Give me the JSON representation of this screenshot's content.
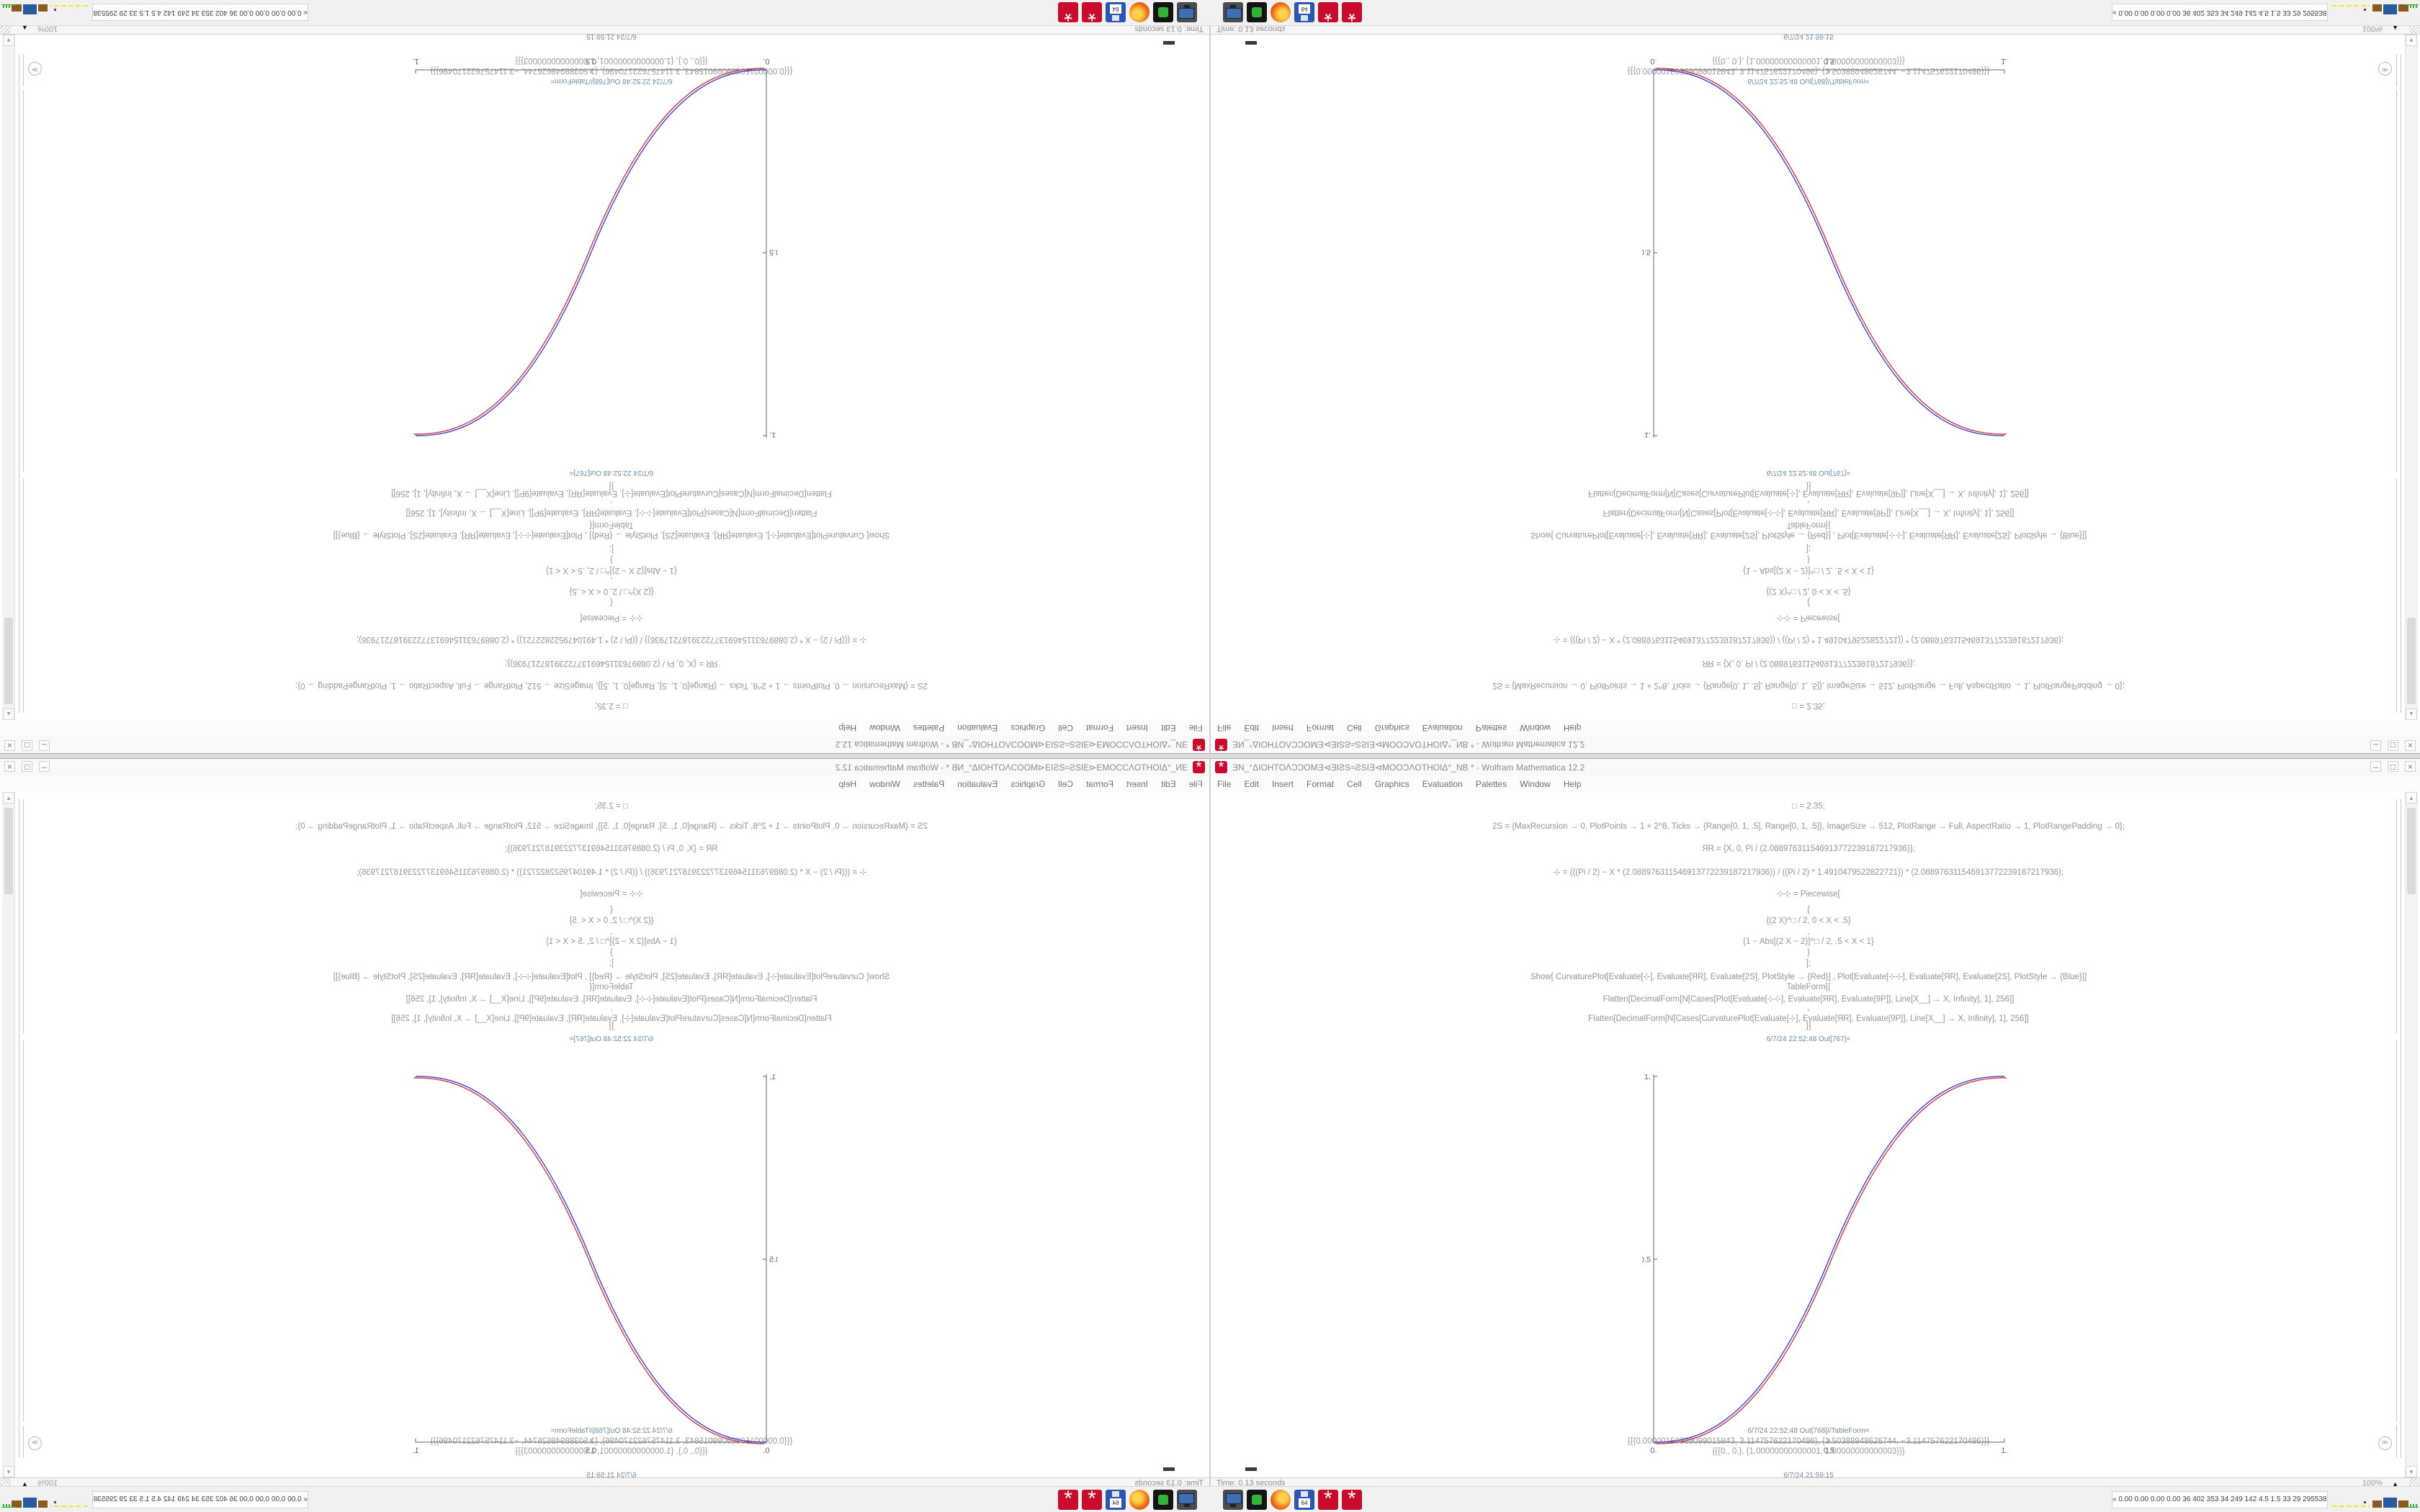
{
  "window": {
    "title": "ƎN_°ΔIOHTOΛƆƆOMƎ⊲ƎIƧS≈ƧSIƎ⊲MOOƆΛOTHOIΔ°_NB * - Wolfram Mathematica 12.2",
    "controls": {
      "minimize": "–",
      "maximize": "□",
      "close": "×"
    },
    "app_icon": "*"
  },
  "menu": {
    "items": [
      {
        "text": "File"
      },
      {
        "text": "Edit"
      },
      {
        "text": "Insert"
      },
      {
        "text": "Format"
      },
      {
        "text": "Cell"
      },
      {
        "text": "Graphics"
      },
      {
        "text": "Evaluation"
      },
      {
        "text": "Palettes"
      },
      {
        "text": "Window"
      },
      {
        "text": "Help"
      }
    ]
  },
  "notebook": {
    "lines": [
      {
        "y": 14,
        "kind": "in",
        "text": "□ = 2.35;"
      },
      {
        "y": 42,
        "kind": "in",
        "text": "2S = {MaxRecursion → 0, PlotPoints → 1 + 2^8, Ticks → {Range[0, 1, .5], Range[0, 1, .5]}, ImageSize → 512, PlotRange → Full, AspectRatio → 1, PlotRangePadding → 0};"
      },
      {
        "y": 73,
        "kind": "in",
        "text": "ЯR = {X, 0, Pi / (2.088976311546913772239187217936)};"
      },
      {
        "y": 104,
        "kind": "in",
        "text": "⊹ = (((Pi / 2) − X * (2.088976311546913772239187217936)) / ((Pi / 2) * 1.4910479522822721)) * (2.088976311546913772239187217936);"
      },
      {
        "y": 134,
        "kind": "in",
        "text": "⊹⊹ = Piecewise["
      },
      {
        "y": 158,
        "kind": "in",
        "text": "{"
      },
      {
        "y": 173,
        "kind": "in",
        "text": "{(2 X)^□ / 2, 0 < X < .5}"
      },
      {
        "y": 188,
        "kind": "in",
        "text": ","
      },
      {
        "y": 202,
        "kind": "in",
        "text": "{1 − Abs[(2 X − 2)]^□ / 2, .5 < X < 1}"
      },
      {
        "y": 217,
        "kind": "in",
        "text": "}"
      },
      {
        "y": 232,
        "kind": "in",
        "text": "];"
      },
      {
        "y": 249,
        "kind": "in",
        "text": "Show[  CurvaturePlot[Evaluate[⊹], Evaluate[ЯR], Evaluate[2S], PlotStyle → {Red}]  ,  Plot[Evaluate[⊹⊹], Evaluate[ЯR], Evaluate[2S], PlotStyle → {Blue}]]"
      },
      {
        "y": 265,
        "kind": "in",
        "text": "TableForm[{"
      },
      {
        "y": 280,
        "kind": "in",
        "text": "Flatten[DecimalForm[N[Cases[Plot[Evaluate[⊹⊹], Evaluate[ЯR], Evaluate[9P]], Line[X__] → X, Infinity], 1], 256]]"
      },
      {
        "y": 294,
        "kind": "in",
        "text": ","
      },
      {
        "y": 307,
        "kind": "in",
        "text": "Flatten[DecimalForm[N[Cases[CurvaturePlot[Evaluate[⊹], Evaluate[ЯR], Evaluate[9P]], Line[X__] → X, Infinity], 1], 256]]"
      },
      {
        "y": 319,
        "kind": "in",
        "text": "}]"
      },
      {
        "y": 338,
        "kind": "label",
        "text": "6/7/24 22:52:48 Out[767]="
      },
      {
        "y": 882,
        "kind": "label",
        "text": "6/7/24 22:52:48 Out[768]//TableForm="
      },
      {
        "y": 896,
        "kind": "out",
        "text": "{{{0.00000150389099015843, 3.114757622170496}, {1.50388948626744, −3.114757622170496}}}"
      },
      {
        "y": 910,
        "kind": "out",
        "text": "{{{0., 0.}, {1.00000000000001, 1.00000000000003}}}"
      },
      {
        "y": 944,
        "kind": "label",
        "text": "6/7/24 21:59:15"
      }
    ],
    "scroll_up": "▲",
    "scroll_down": "▼",
    "group_opener": "≫"
  },
  "chart_data": {
    "type": "line",
    "title": "",
    "xlabel": "",
    "ylabel": "",
    "x_range": [
      0,
      1
    ],
    "y_range": [
      0,
      1
    ],
    "xticks": [
      "0.",
      "0.5",
      "1."
    ],
    "xtick_values": [
      0,
      0.5,
      1
    ],
    "yticks": [
      "0.5",
      "1."
    ],
    "ytick_values": [
      0.5,
      1
    ],
    "grid": false,
    "legend": "none",
    "function": "piecewise: y = (2x)^2.35/2 for 0<x<.5 ; y = 1 - Abs[2x-2]^2.35/2 for .5<x<1",
    "exponent": 2.35,
    "series": [
      {
        "name": "CurvaturePlot-red",
        "color": "#cc3a4a",
        "dx": 2.5,
        "dy": 2,
        "x": [
          0,
          0.1,
          0.2,
          0.3,
          0.4,
          0.5,
          0.6,
          0.7,
          0.8,
          0.9,
          1
        ],
        "values": [
          0,
          0.011,
          0.058,
          0.15,
          0.296,
          0.5,
          0.704,
          0.85,
          0.942,
          0.989,
          1
        ]
      },
      {
        "name": "Plot-blue",
        "color": "#4343cf",
        "dx": 0,
        "dy": 0,
        "x": [
          0,
          0.1,
          0.2,
          0.3,
          0.4,
          0.5,
          0.6,
          0.7,
          0.8,
          0.9,
          1
        ],
        "values": [
          0,
          0.011,
          0.058,
          0.15,
          0.296,
          0.5,
          0.704,
          0.85,
          0.942,
          0.989,
          1
        ]
      }
    ]
  },
  "statusbar": {
    "left_text": "Time: 0.13 seconds",
    "zoom": "100%",
    "zoom_triangle": "▲"
  },
  "taskbar": {
    "icons": [
      {
        "name": "display-settings-icon"
      },
      {
        "name": "screen-recorder-icon"
      },
      {
        "name": "firefox-icon"
      },
      {
        "name": "floppy-64-icon",
        "label": "64"
      },
      {
        "name": "mathematica-icon"
      },
      {
        "name": "mathematica-icon-2"
      }
    ],
    "floppy_label": "64",
    "wolfram_glyph": "*",
    "monitor_numbers": "« 0.00 0.00 0.00 0.00  36  402 353  34  249 142  4.5  1.5  33  29  29553811"
  },
  "layout_note": "Screenshot collage: bottom-right tile is the source screen; bottom-left is its horizontal mirror; top half is the 180-degree rotation of the bottom half."
}
